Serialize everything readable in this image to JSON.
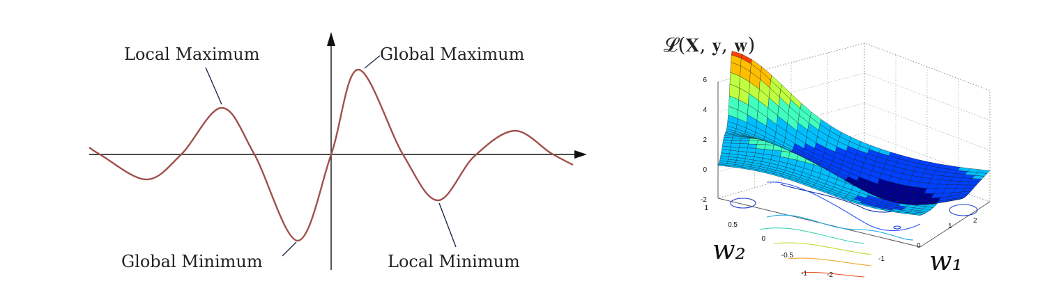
{
  "left_panel": {
    "labels": {
      "local_maximum": "Local Maximum",
      "global_maximum": "Global Maximum",
      "global_minimum": "Global Minimum",
      "local_minimum": "Local Minimum"
    },
    "colors": {
      "curve": "#a0504a",
      "axes": "#111111",
      "leader": "#1c2a4a"
    }
  },
  "right_panel": {
    "title": "𝓛(𝐗, 𝐲, 𝐰)",
    "z_ticks": [
      "6",
      "4",
      "2",
      "0",
      "-2"
    ],
    "w2_ticks": [
      "1",
      "0.5",
      "0",
      "-0.5",
      "-1"
    ],
    "w1_ticks": [
      "-2",
      "-1",
      "0",
      "1",
      "2"
    ],
    "w2_label": "w₂",
    "w1_label": "w₁",
    "colormap": [
      "#00008f",
      "#0040ff",
      "#00bfff",
      "#40ffbf",
      "#bfff40",
      "#ffbf00",
      "#ff4000",
      "#8f0000"
    ]
  }
}
